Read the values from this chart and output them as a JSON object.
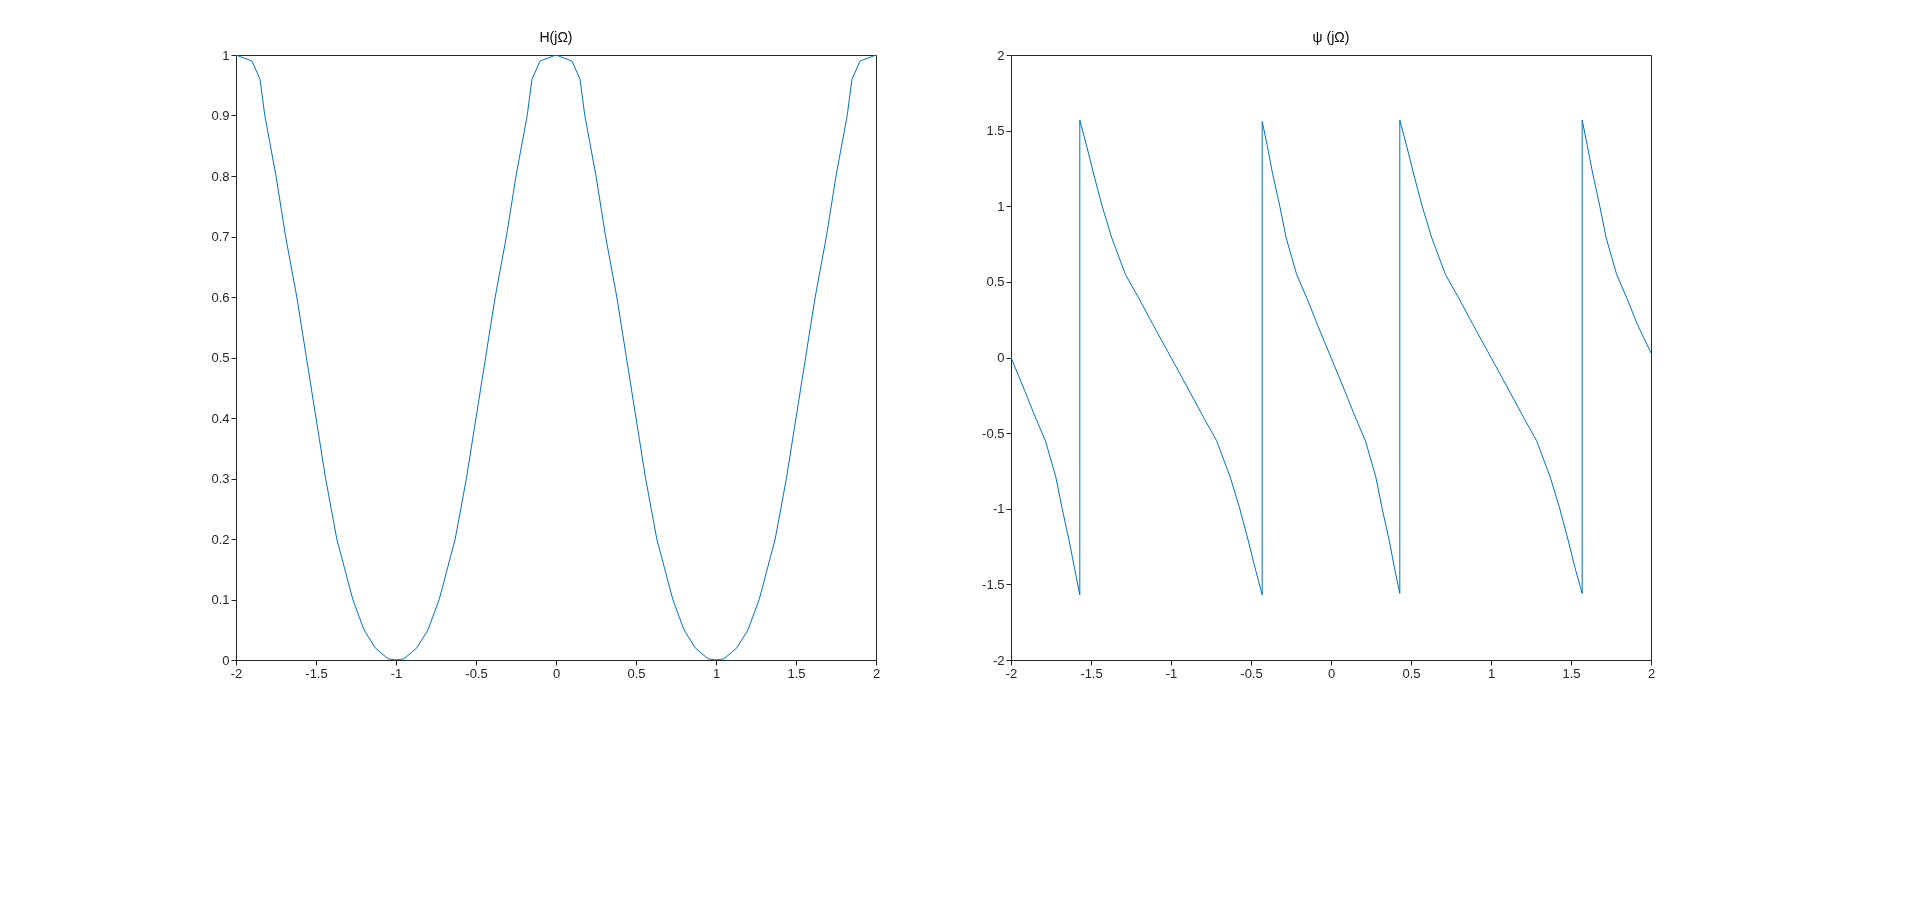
{
  "chart_data": [
    {
      "type": "line",
      "title": "H(jΩ)",
      "xlim": [
        -2,
        2
      ],
      "ylim": [
        0,
        1
      ],
      "xticks": [
        -2,
        -1.5,
        -1,
        -0.5,
        0,
        0.5,
        1,
        1.5,
        2
      ],
      "yticks": [
        0,
        0.1,
        0.2,
        0.3,
        0.4,
        0.5,
        0.6,
        0.7,
        0.8,
        0.9,
        1
      ],
      "grid": false,
      "x": [
        -2,
        -1.9,
        -1.85,
        -1.82,
        -1.75,
        -1.69,
        -1.62,
        -1.56,
        -1.5,
        -1.44,
        -1.37,
        -1.27,
        -1.2,
        -1.13,
        -1.05,
        -1,
        -0.95,
        -0.87,
        -0.8,
        -0.73,
        -0.63,
        -0.56,
        -0.5,
        -0.44,
        -0.38,
        -0.31,
        -0.25,
        -0.18,
        -0.15,
        -0.1,
        0,
        0.1,
        0.15,
        0.18,
        0.25,
        0.31,
        0.38,
        0.44,
        0.5,
        0.56,
        0.63,
        0.73,
        0.8,
        0.87,
        0.95,
        1,
        1.05,
        1.13,
        1.2,
        1.27,
        1.37,
        1.44,
        1.5,
        1.56,
        1.62,
        1.69,
        1.75,
        1.82,
        1.85,
        1.9,
        2
      ],
      "series": [
        {
          "color": "#0072bd",
          "values": [
            1,
            0.99,
            0.96,
            0.9,
            0.8,
            0.7,
            0.6,
            0.5,
            0.4,
            0.3,
            0.2,
            0.1,
            0.05,
            0.02,
            0.002,
            0,
            0.002,
            0.02,
            0.05,
            0.1,
            0.2,
            0.3,
            0.4,
            0.5,
            0.6,
            0.7,
            0.8,
            0.9,
            0.96,
            0.99,
            1,
            0.99,
            0.96,
            0.9,
            0.8,
            0.7,
            0.6,
            0.5,
            0.4,
            0.3,
            0.2,
            0.1,
            0.05,
            0.02,
            0.002,
            0,
            0.002,
            0.02,
            0.05,
            0.1,
            0.2,
            0.3,
            0.4,
            0.5,
            0.6,
            0.7,
            0.8,
            0.9,
            0.96,
            0.99,
            1
          ]
        }
      ]
    },
    {
      "type": "line",
      "title": "ψ (jΩ)",
      "xlim": [
        -2,
        2
      ],
      "ylim": [
        -2,
        2
      ],
      "xticks": [
        -2,
        -1.5,
        -1,
        -0.5,
        0,
        0.5,
        1,
        1.5,
        2
      ],
      "yticks": [
        -2,
        -1.5,
        -1,
        -0.5,
        0,
        0.5,
        1,
        1.5,
        2
      ],
      "grid": false,
      "x": [
        -2,
        -1.914,
        -1.85,
        -1.785,
        -1.72,
        -1.68,
        -1.635,
        -1.6,
        -1.57,
        -1.57,
        -1.53,
        -1.485,
        -1.43,
        -1.37,
        -1.285,
        -1.2,
        -1.114,
        -1,
        -0.886,
        -0.8,
        -0.715,
        -0.63,
        -0.57,
        -0.515,
        -0.47,
        -0.43,
        -0.43,
        -0.4,
        -0.366,
        -0.32,
        -0.28,
        -0.215,
        -0.15,
        -0.086,
        0,
        0.086,
        0.15,
        0.215,
        0.28,
        0.32,
        0.366,
        0.4,
        0.43,
        0.43,
        0.47,
        0.515,
        0.57,
        0.63,
        0.715,
        0.8,
        0.886,
        1,
        1.114,
        1.2,
        1.285,
        1.37,
        1.43,
        1.485,
        1.53,
        1.57,
        1.57,
        1.6,
        1.635,
        1.68,
        1.72,
        1.785,
        1.85,
        1.914,
        2
      ],
      "series": [
        {
          "color": "#0072bd",
          "values": [
            0,
            -0.22,
            -0.39,
            -0.55,
            -0.79,
            -1.0,
            -1.22,
            -1.41,
            -1.57,
            1.57,
            1.41,
            1.22,
            1.0,
            0.79,
            0.55,
            0.39,
            0.22,
            0,
            -0.22,
            -0.39,
            -0.55,
            -0.79,
            -1.0,
            -1.22,
            -1.41,
            -1.57,
            1.56,
            1.41,
            1.22,
            1.0,
            0.79,
            0.55,
            0.39,
            0.22,
            0,
            -0.22,
            -0.39,
            -0.55,
            -0.79,
            -1.0,
            -1.22,
            -1.41,
            -1.56,
            1.57,
            1.41,
            1.22,
            1.0,
            0.79,
            0.55,
            0.39,
            0.22,
            0,
            -0.22,
            -0.39,
            -0.55,
            -0.79,
            -1.0,
            -1.22,
            -1.41,
            -1.56,
            1.57,
            1.41,
            1.22,
            1.0,
            0.79,
            0.55,
            0.39,
            0.22,
            0.03
          ]
        }
      ]
    }
  ]
}
